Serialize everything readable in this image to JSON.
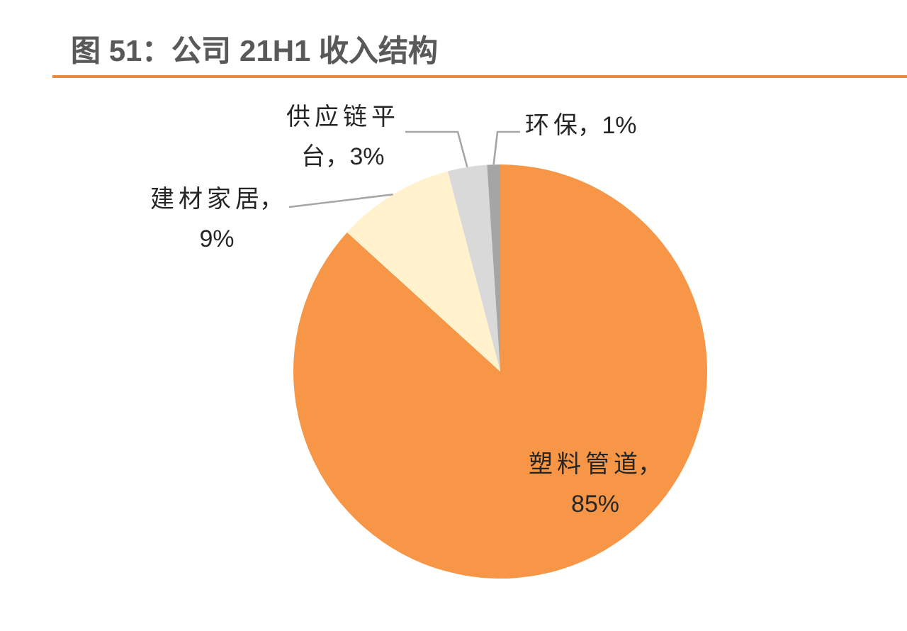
{
  "chart_data": {
    "type": "pie",
    "title": "图 51：公司 21H1 收入结构",
    "categories": [
      "塑料管道",
      "建材家居",
      "供应链平台",
      "环保"
    ],
    "values": [
      85,
      9,
      3,
      1
    ],
    "colors": [
      "#F79646",
      "#FFF2CC",
      "#D9D9D9",
      "#A5A5A5"
    ],
    "value_labels": [
      "，85%",
      "，9%",
      "，3%",
      "，1%"
    ]
  }
}
